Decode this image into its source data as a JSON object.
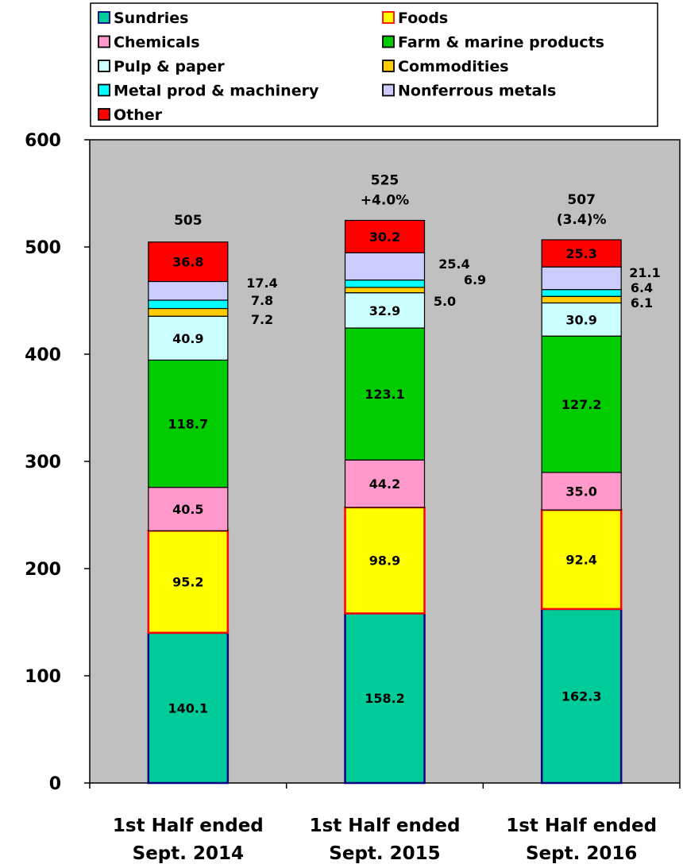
{
  "chart_data": {
    "type": "bar",
    "stacked": true,
    "categories": [
      [
        "1st Half ended",
        "Sept. 2014"
      ],
      [
        "1st Half ended",
        "Sept. 2015"
      ],
      [
        "1st Half ended",
        "Sept. 2016"
      ]
    ],
    "ylim": [
      0,
      600
    ],
    "yticks": [
      "0",
      "100",
      "200",
      "300",
      "400",
      "500",
      "600"
    ],
    "legend_position": "top",
    "grid": false,
    "series": [
      {
        "name": "Sundries",
        "values": [
          140.1,
          158.2,
          162.3
        ],
        "labels": [
          "140.1",
          "158.2",
          "162.3"
        ],
        "color": "#00CC99",
        "edge": "#000080"
      },
      {
        "name": "Foods",
        "values": [
          95.2,
          98.9,
          92.4
        ],
        "labels": [
          "95.2",
          "98.9",
          "92.4"
        ],
        "color": "#FFFF00",
        "edge": "#FF0000"
      },
      {
        "name": "Chemicals",
        "values": [
          40.5,
          44.2,
          35.0
        ],
        "labels": [
          "40.5",
          "44.2",
          "35.0"
        ],
        "color": "#FF99CC",
        "edge": "#000000"
      },
      {
        "name": "Farm & marine products",
        "values": [
          118.7,
          123.1,
          127.2
        ],
        "labels": [
          "118.7",
          "123.1",
          "127.2"
        ],
        "color": "#00CC00",
        "edge": "#000000"
      },
      {
        "name": "Pulp & paper",
        "values": [
          40.9,
          32.9,
          30.9
        ],
        "labels": [
          "40.9",
          "32.9",
          "30.9"
        ],
        "color": "#CCFFFF",
        "edge": "#000000"
      },
      {
        "name": "Commodities",
        "values": [
          7.2,
          5.0,
          6.1
        ],
        "labels": [
          "7.2",
          "5.0",
          "6.1"
        ],
        "color": "#FFCC00",
        "edge": "#000000"
      },
      {
        "name": "Metal prod & machinery",
        "values": [
          7.8,
          6.9,
          6.4
        ],
        "labels": [
          "7.8",
          "6.9",
          "6.4"
        ],
        "color": "#00FFFF",
        "edge": "#000000"
      },
      {
        "name": "Nonferrous metals",
        "values": [
          17.4,
          25.4,
          21.1
        ],
        "labels": [
          "17.4",
          "25.4",
          "21.1"
        ],
        "color": "#CCCCFF",
        "edge": "#000000"
      },
      {
        "name": "Other",
        "values": [
          36.8,
          30.2,
          25.3
        ],
        "labels": [
          "36.8",
          "30.2",
          "25.3"
        ],
        "color": "#FF0000",
        "edge": "#000000"
      }
    ],
    "totals": [
      {
        "value": "505",
        "change": ""
      },
      {
        "value": "525",
        "change": "+4.0%"
      },
      {
        "value": "507",
        "change": "(3.4)%"
      }
    ]
  }
}
